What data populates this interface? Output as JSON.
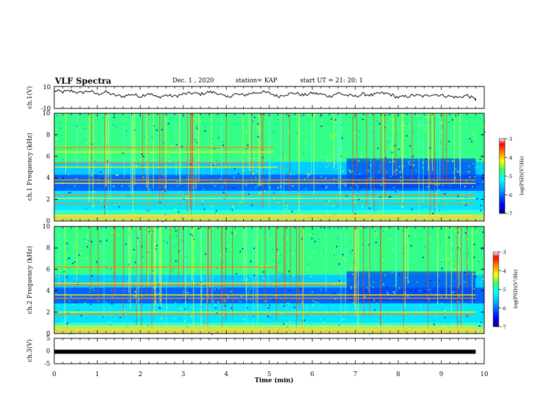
{
  "header": {
    "title": "VLF Spectra",
    "date": "Dec. 1 , 2020",
    "station": "station= KAP",
    "start": "start UT =  21: 20: 1"
  },
  "colors": {
    "spectrogram_scale": [
      "#0000aa",
      "#0033ff",
      "#0099ff",
      "#00ffff",
      "#33ff99",
      "#ffff00",
      "#ff8800",
      "#ff0000",
      "#ffffff"
    ],
    "trace": "#000000",
    "frame": "#000000"
  },
  "chart_data": [
    {
      "type": "line",
      "panel": "ch1-waveform",
      "ylabel": "ch.1(V)",
      "ylim": [
        -10,
        10
      ],
      "yticks": [
        "10",
        "-10"
      ],
      "x": [
        0,
        0.2,
        0.4,
        0.6,
        0.8,
        1.0,
        1.2,
        1.4,
        1.6,
        1.8,
        2.0,
        2.2,
        2.4,
        2.6,
        2.8,
        3.0,
        3.2,
        3.4,
        3.6,
        3.8,
        4.0,
        4.2,
        4.4,
        4.6,
        4.8,
        5.0,
        5.2,
        5.4,
        5.6,
        5.8,
        6.0,
        6.2,
        6.4,
        6.6,
        6.8,
        7.0,
        7.2,
        7.4,
        7.6,
        7.8,
        8.0,
        8.2,
        8.4,
        8.6,
        8.8,
        9.0,
        9.2,
        9.4,
        9.6,
        9.8
      ],
      "y": [
        6,
        5,
        6,
        4,
        6,
        3,
        5,
        2,
        1,
        3,
        1,
        4,
        0,
        2,
        1,
        3,
        4,
        3,
        5,
        4,
        0,
        3,
        2,
        4,
        5,
        4,
        1,
        3,
        4,
        2,
        4,
        3,
        1,
        4,
        2,
        1,
        3,
        2,
        4,
        3,
        0,
        1,
        2,
        1,
        3,
        2,
        1,
        0,
        2,
        -2
      ]
    },
    {
      "type": "heatmap",
      "panel": "ch1-spectrogram",
      "ylabel": "ch.1 Frequency (kHz)",
      "ylim": [
        0,
        10
      ],
      "yticks": [
        "0",
        "2",
        "4",
        "6",
        "8",
        "10"
      ],
      "colorbar_label": "log(PSD)(V²/Hz)",
      "colorbar_ticks": [
        "-3",
        "-4",
        "-5",
        "-6",
        "-7"
      ],
      "clim": [
        -7,
        -3
      ],
      "tone_lines_khz": [
        6.8,
        6.4,
        5.4,
        5.0,
        3.8,
        3.5,
        2.4,
        2.1,
        1.6,
        0.5,
        0.3
      ],
      "tone_end_min": [
        5.1,
        5.1,
        4.9,
        5.2,
        9.8,
        9.8,
        9.8,
        9.8,
        9.8,
        9.8,
        9.8
      ]
    },
    {
      "type": "heatmap",
      "panel": "ch2-spectrogram",
      "ylabel": "ch.2 Frequency (kHz)",
      "ylim": [
        0,
        10
      ],
      "yticks": [
        "0",
        "2",
        "4",
        "6",
        "8",
        "10"
      ],
      "colorbar_label": "log(PSD)(V²/Hz)",
      "colorbar_ticks": [
        "-3",
        "-4",
        "-5",
        "-6",
        "-7"
      ],
      "clim": [
        -7,
        -3
      ],
      "tone_lines_khz": [
        6.2,
        4.7,
        4.5,
        3.6,
        3.3,
        2.0,
        1.8,
        0.7,
        0.2
      ],
      "tone_end_min": [
        5.2,
        6.8,
        6.8,
        9.8,
        9.8,
        9.8,
        9.8,
        9.8,
        9.8
      ]
    },
    {
      "type": "line",
      "panel": "ch3-waveform",
      "ylabel": "ch.3(V)",
      "ylim": [
        -5,
        5
      ],
      "yticks": [
        "5",
        "0",
        "-5"
      ],
      "x": [
        0,
        9.8
      ],
      "y": [
        0,
        0
      ]
    }
  ],
  "xaxis": {
    "label": "Time (min)",
    "ticks": [
      "0",
      "1",
      "2",
      "3",
      "4",
      "5",
      "6",
      "7",
      "8",
      "9",
      "10"
    ],
    "xlim": [
      0,
      10
    ]
  }
}
